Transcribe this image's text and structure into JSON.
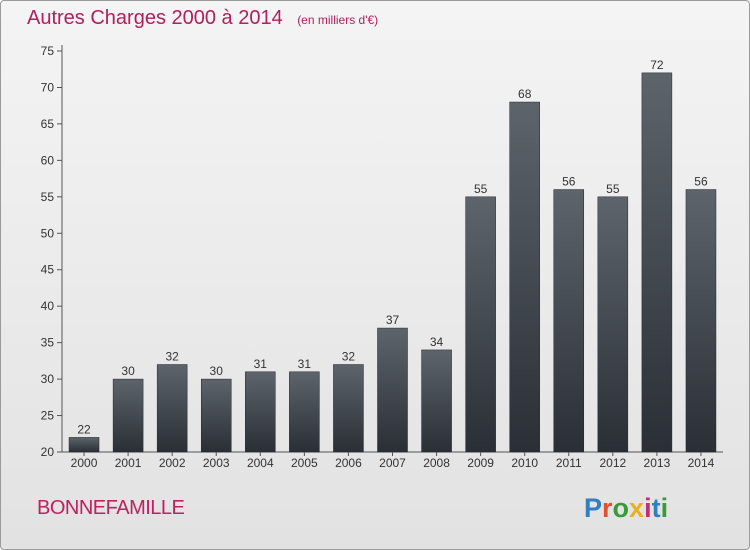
{
  "title": "Autres Charges 2000 à 2014",
  "subtitle": "(en milliers d'€)",
  "commune": "BONNEFAMILLE",
  "logo_text": "Proxiti",
  "colors": {
    "title": "#b0205c",
    "bar_top": "#5e646b",
    "bar_bottom": "#2a2f36",
    "axis": "#555555"
  },
  "chart_data": {
    "type": "bar",
    "title": "Autres Charges 2000 à 2014",
    "subtitle": "(en milliers d'€)",
    "categories": [
      "2000",
      "2001",
      "2002",
      "2003",
      "2004",
      "2005",
      "2006",
      "2007",
      "2008",
      "2009",
      "2010",
      "2011",
      "2012",
      "2013",
      "2014"
    ],
    "values": [
      22,
      30,
      32,
      30,
      31,
      31,
      32,
      37,
      34,
      55,
      68,
      56,
      55,
      72,
      56
    ],
    "ylim": [
      20,
      75
    ],
    "yticks": [
      20,
      25,
      30,
      35,
      40,
      45,
      50,
      55,
      60,
      65,
      70,
      75
    ],
    "grid": false,
    "xlabel": "",
    "ylabel": ""
  }
}
